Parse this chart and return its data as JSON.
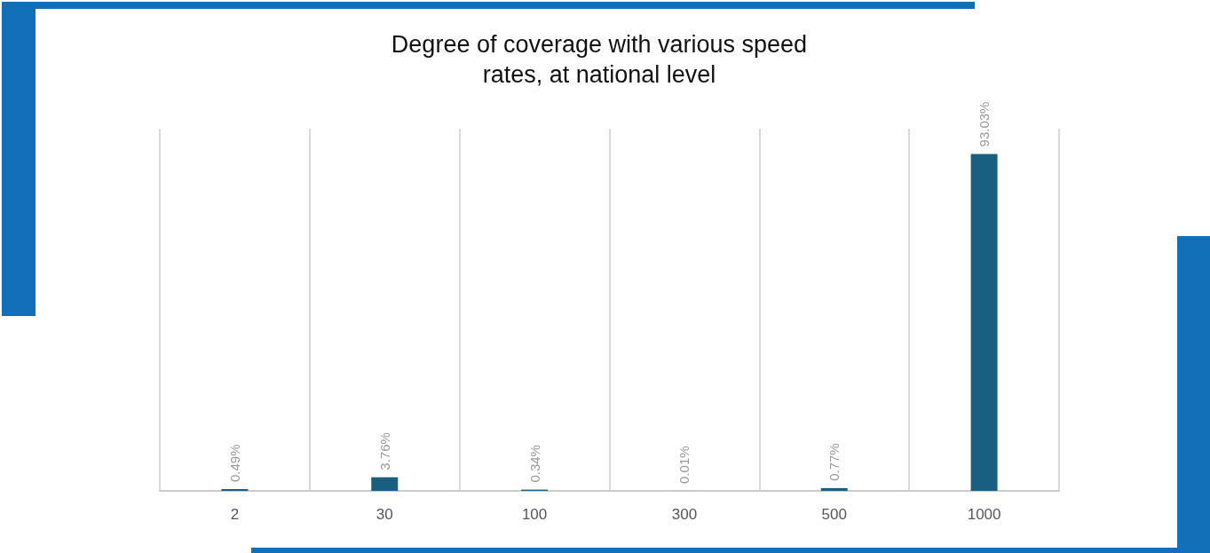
{
  "chart_data": {
    "type": "bar",
    "title": "Degree of coverage with various speed\nrates, at national level",
    "categories": [
      "2",
      "30",
      "100",
      "300",
      "500",
      "1000"
    ],
    "values": [
      0.49,
      3.76,
      0.34,
      0.01,
      0.77,
      93.03
    ],
    "value_labels": [
      "0.49%",
      "3.76%",
      "0.34%",
      "0.01%",
      "0.77%",
      "93.03%"
    ],
    "color": "#195f7f",
    "grid": "x"
  }
}
